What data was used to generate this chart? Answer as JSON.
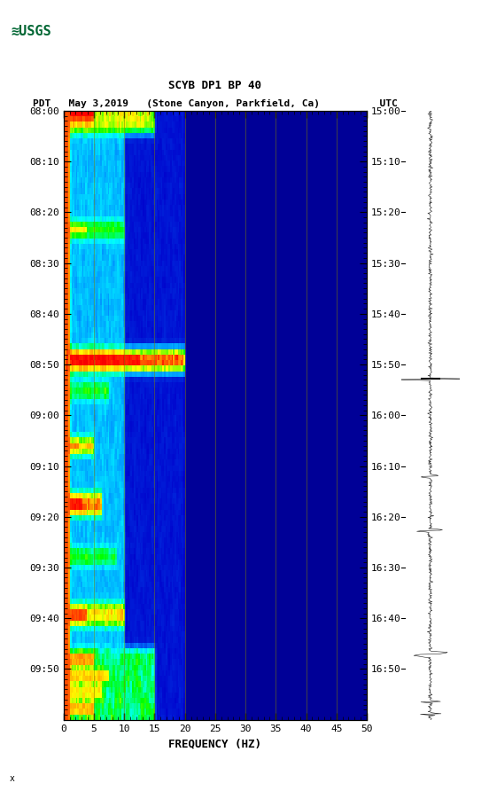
{
  "title_line1": "SCYB DP1 BP 40",
  "title_line2": "PDT   May 3,2019   (Stone Canyon, Parkfield, Ca)          UTC",
  "xlabel": "FREQUENCY (HZ)",
  "freq_min": 0,
  "freq_max": 50,
  "freq_ticks": [
    0,
    5,
    10,
    15,
    20,
    25,
    30,
    35,
    40,
    45,
    50
  ],
  "freq_gridlines": [
    5,
    10,
    15,
    20,
    25,
    30,
    35,
    40,
    45
  ],
  "time_start_label": "08:00",
  "time_end_label": "09:50",
  "utc_start_label": "15:00",
  "utc_end_label": "16:50",
  "time_labels_left": [
    "08:00",
    "08:10",
    "08:20",
    "08:30",
    "08:40",
    "08:50",
    "09:00",
    "09:10",
    "09:20",
    "09:30",
    "09:40",
    "09:50"
  ],
  "time_labels_right": [
    "15:00",
    "15:10",
    "15:20",
    "15:30",
    "15:40",
    "15:50",
    "16:00",
    "16:10",
    "16:20",
    "16:30",
    "16:40",
    "16:50"
  ],
  "n_time_steps": 110,
  "background_color": "#000080",
  "spectrogram_figsize": [
    5.52,
    8.92
  ],
  "colormap_colors": [
    "#000080",
    "#0000ff",
    "#00ffff",
    "#00ff00",
    "#ffff00",
    "#ff0000",
    "#800000"
  ],
  "dark_red_col": "#8B0000",
  "usgs_green": "#006633"
}
